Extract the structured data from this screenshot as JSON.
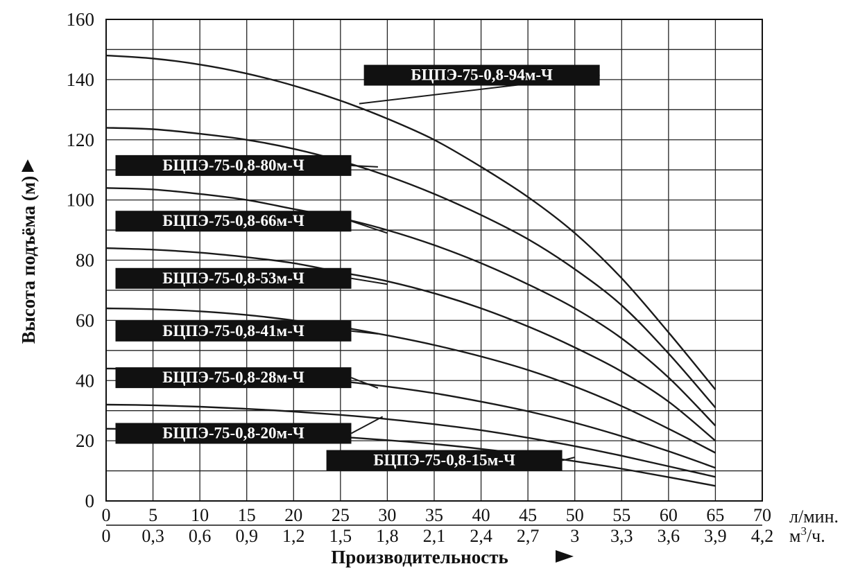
{
  "chart_data": {
    "type": "line",
    "title": "",
    "ylabel": "Высота подъёма (м)",
    "xlabel": "Производительность",
    "ylim": [
      0,
      160
    ],
    "xlim": [
      0,
      70
    ],
    "grid": true,
    "y_ticks": [
      "0",
      "20",
      "40",
      "60",
      "80",
      "100",
      "120",
      "140",
      "160"
    ],
    "x_primary": {
      "unit": "л/мин.",
      "ticks": [
        "0",
        "5",
        "10",
        "15",
        "20",
        "25",
        "30",
        "35",
        "40",
        "45",
        "50",
        "55",
        "60",
        "65",
        "70"
      ]
    },
    "x_secondary": {
      "unit_main": "м",
      "unit_sup": "3",
      "unit_tail": "/ч.",
      "ticks": [
        "0",
        "0,3",
        "0,6",
        "0,9",
        "1,2",
        "1,5",
        "1,8",
        "2,1",
        "2,4",
        "2,7",
        "3",
        "3,3",
        "3,6",
        "3,9",
        "4,2"
      ]
    },
    "series": [
      {
        "name": "БЦПЭ-75-0,8-94м-Ч",
        "x": [
          0,
          5,
          10,
          15,
          20,
          25,
          30,
          35,
          40,
          45,
          50,
          55,
          60,
          65
        ],
        "values": [
          148,
          147,
          145,
          142,
          138,
          133,
          127,
          120,
          111,
          101,
          89,
          74,
          56,
          37
        ]
      },
      {
        "name": "БЦПЭ-75-0,8-80м-Ч",
        "x": [
          0,
          5,
          10,
          15,
          20,
          25,
          30,
          35,
          40,
          45,
          50,
          55,
          60,
          65
        ],
        "values": [
          124,
          123.5,
          122,
          120,
          117,
          113,
          108,
          102,
          95,
          87,
          77,
          65,
          49,
          31
        ]
      },
      {
        "name": "БЦПЭ-75-0,8-66м-Ч",
        "x": [
          0,
          5,
          10,
          15,
          20,
          25,
          30,
          35,
          40,
          45,
          50,
          55,
          60,
          65
        ],
        "values": [
          104,
          103.5,
          102,
          100,
          97,
          94,
          90,
          85,
          79,
          72,
          64,
          54,
          41,
          25
        ]
      },
      {
        "name": "БЦПЭ-75-0,8-53м-Ч",
        "x": [
          0,
          5,
          10,
          15,
          20,
          25,
          30,
          35,
          40,
          45,
          50,
          55,
          60,
          65
        ],
        "values": [
          84,
          83.5,
          82.5,
          81,
          79,
          76,
          73,
          69,
          64,
          58,
          51,
          43,
          33,
          20
        ]
      },
      {
        "name": "БЦПЭ-75-0,8-41м-Ч",
        "x": [
          0,
          5,
          10,
          15,
          20,
          25,
          30,
          35,
          40,
          45,
          50,
          55,
          60,
          65
        ],
        "values": [
          64,
          63.7,
          63,
          61.8,
          60,
          57.8,
          55,
          51.8,
          48,
          43.5,
          38,
          31.5,
          24,
          16
        ]
      },
      {
        "name": "БЦПЭ-75-0,8-28м-Ч",
        "x": [
          0,
          5,
          10,
          15,
          20,
          25,
          30,
          35,
          40,
          45,
          50,
          55,
          60,
          65
        ],
        "values": [
          44,
          43.8,
          43.2,
          42.4,
          41.3,
          39.8,
          38,
          35.8,
          33,
          29.8,
          26,
          21.5,
          16.5,
          11
        ]
      },
      {
        "name": "БЦПЭ-75-0,8-20м-Ч",
        "x": [
          0,
          5,
          10,
          15,
          20,
          25,
          30,
          35,
          40,
          45,
          50,
          55,
          60,
          65
        ],
        "values": [
          32,
          31.8,
          31.3,
          30.6,
          29.7,
          28.6,
          27.2,
          25.5,
          23.5,
          21,
          18.2,
          15,
          11.5,
          8
        ]
      },
      {
        "name": "БЦПЭ-75-0,8-15м-Ч",
        "x": [
          0,
          5,
          10,
          15,
          20,
          25,
          30,
          35,
          40,
          45,
          50,
          55,
          60,
          65
        ],
        "values": [
          24,
          23.8,
          23.4,
          22.9,
          22.2,
          21.3,
          20.2,
          18.9,
          17.3,
          15.4,
          13.2,
          10.7,
          7.9,
          5
        ]
      }
    ],
    "curve_labels": [
      {
        "text": "БЦПЭ-75-0,8-94м-Ч",
        "anchor_x": 27,
        "anchor_y": 132,
        "box_x": 27.5,
        "box_y": 138
      },
      {
        "text": "БЦПЭ-75-0,8-80м-Ч",
        "anchor_x": 29,
        "anchor_y": 111,
        "box_x": 1,
        "box_y": 108
      },
      {
        "text": "БЦПЭ-75-0,8-66м-Ч",
        "anchor_x": 30,
        "anchor_y": 89,
        "box_x": 1,
        "box_y": 89.5
      },
      {
        "text": "БЦПЭ-75-0,8-53м-Ч",
        "anchor_x": 30,
        "anchor_y": 72,
        "box_x": 1,
        "box_y": 70.5
      },
      {
        "text": "БЦПЭ-75-0,8-41м-Ч",
        "anchor_x": 29,
        "anchor_y": 55.5,
        "box_x": 1,
        "box_y": 53
      },
      {
        "text": "БЦПЭ-75-0,8-28м-Ч",
        "anchor_x": 29,
        "anchor_y": 37.5,
        "box_x": 1,
        "box_y": 37.5
      },
      {
        "text": "БЦПЭ-75-0,8-20м-Ч",
        "anchor_x": 29.5,
        "anchor_y": 28,
        "box_x": 1,
        "box_y": 19
      },
      {
        "text": "БЦПЭ-75-0,8-15м-Ч",
        "anchor_x": 50,
        "anchor_y": 14.5,
        "box_x": 23.5,
        "box_y": 10
      }
    ],
    "colors": {
      "line": "#1a1a1a",
      "grid": "#222222",
      "label_bg": "#111111",
      "label_text": "#ffffff"
    }
  }
}
